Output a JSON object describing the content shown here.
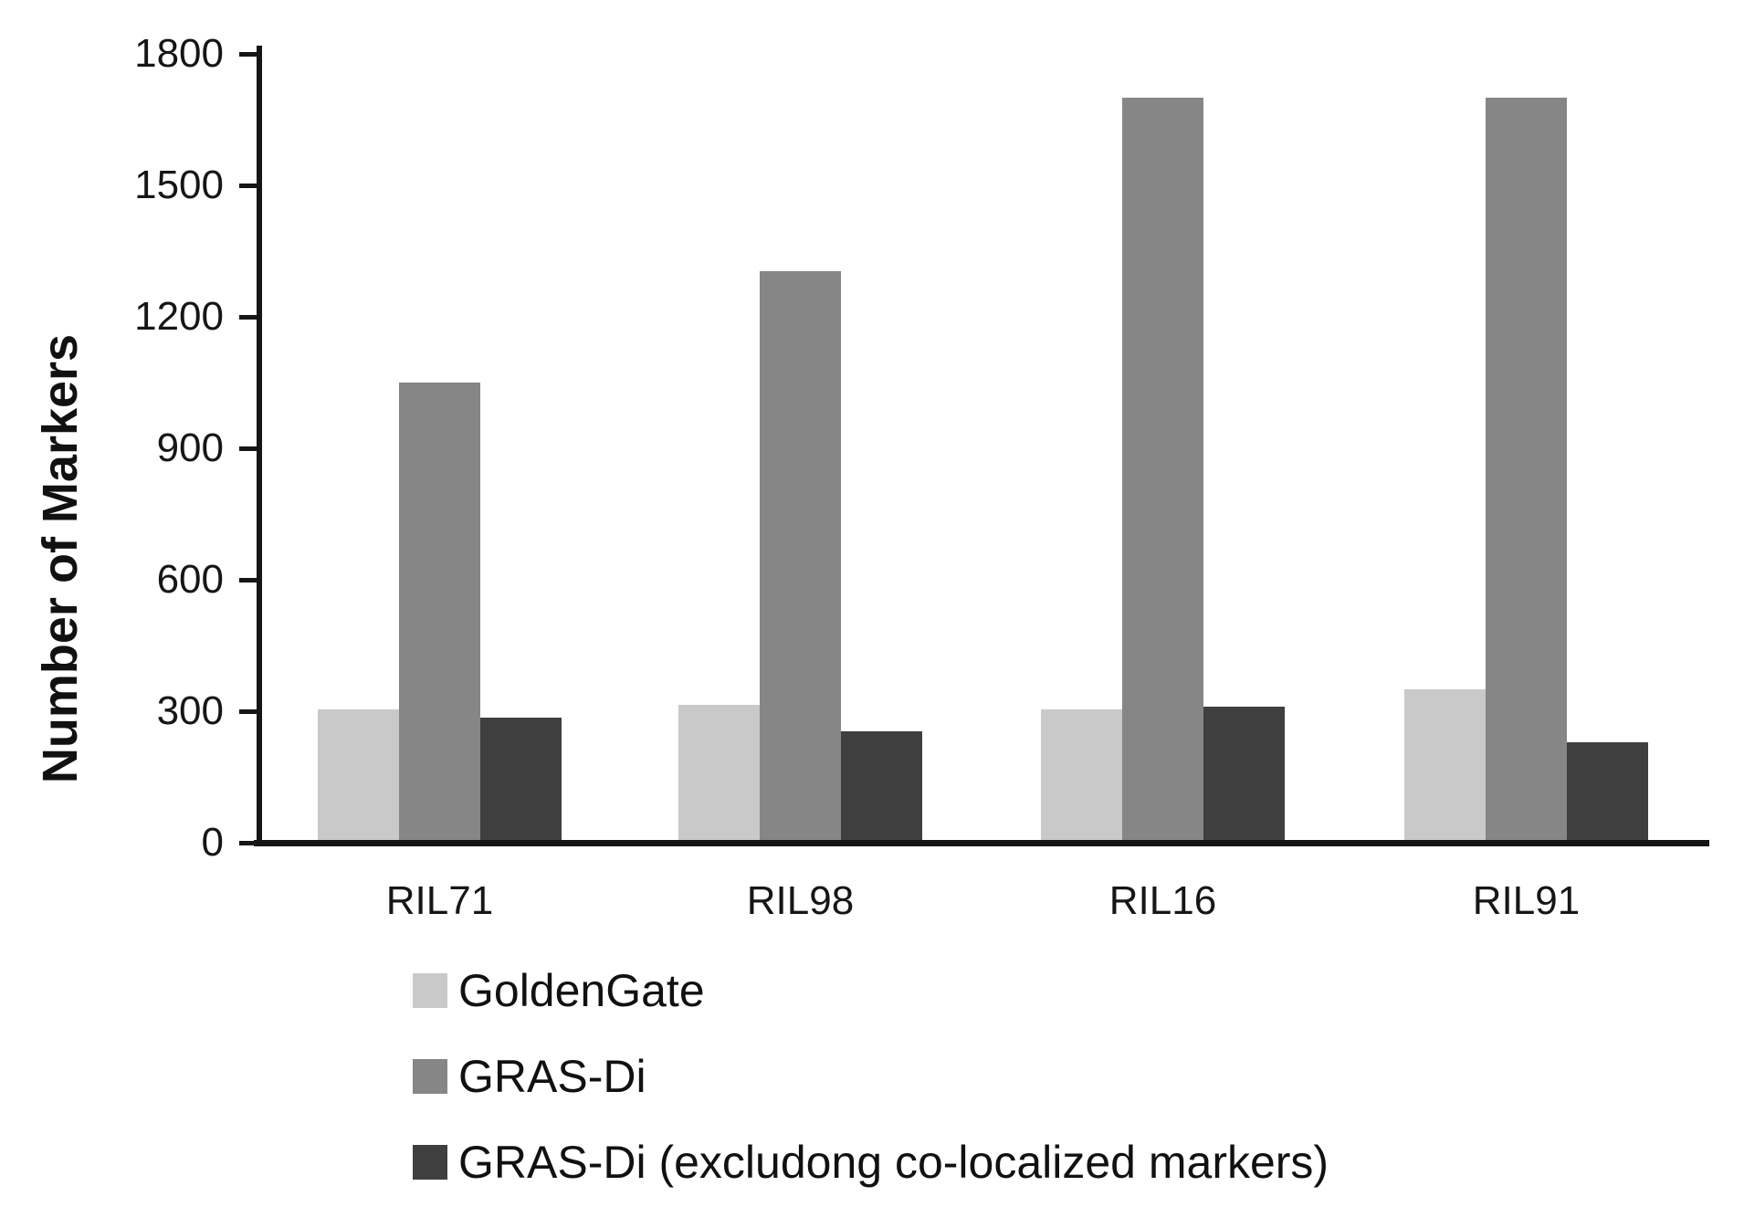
{
  "chart_data": {
    "type": "bar",
    "title": "",
    "xlabel": "",
    "ylabel": "Number of Markers",
    "categories": [
      "RIL71",
      "RIL98",
      "RIL16",
      "RIL91"
    ],
    "series": [
      {
        "name": "GoldenGate",
        "color": "#c9c9c9",
        "values": [
          305,
          315,
          305,
          350
        ]
      },
      {
        "name": "GRAS-Di",
        "color": "#868686",
        "values": [
          1050,
          1305,
          1700,
          1700
        ]
      },
      {
        "name": "GRAS-Di (excludong co-localized markers)",
        "color": "#3f3f3f",
        "values": [
          285,
          255,
          310,
          230
        ]
      }
    ],
    "y_ticks": [
      0,
      300,
      600,
      900,
      1200,
      1500,
      1800
    ],
    "ylim": [
      0,
      1800
    ],
    "grid": false,
    "legend_position": "bottom-left",
    "axis_color": "#161616",
    "text_color": "#111111"
  }
}
